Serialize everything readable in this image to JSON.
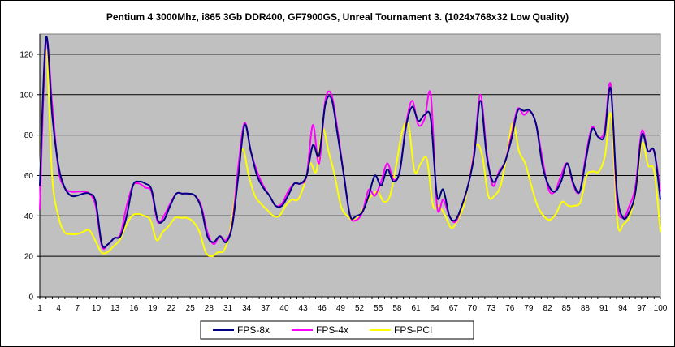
{
  "chart_data": {
    "type": "line",
    "title": "Pentium 4 3000Mhz, i865 3Gb DDR400, GF7900GS, Unreal Tournament 3. (1024x768x32 Low Quality)",
    "xlabel": "",
    "ylabel": "",
    "ylim": [
      0,
      130
    ],
    "yticks": [
      0,
      20,
      40,
      60,
      80,
      100,
      120
    ],
    "xlim": [
      1,
      100
    ],
    "xtick_labels": [
      1,
      4,
      7,
      10,
      13,
      16,
      19,
      22,
      25,
      28,
      31,
      34,
      37,
      40,
      43,
      46,
      49,
      52,
      55,
      58,
      61,
      64,
      67,
      70,
      73,
      76,
      79,
      82,
      85,
      88,
      91,
      94,
      97,
      100
    ],
    "grid": "horizontal",
    "legend_position": "bottom",
    "background": "#c0c0c0",
    "series": [
      {
        "name": "FPS-8x",
        "color": "#000080",
        "values": [
          55,
          128,
          90,
          65,
          54,
          50,
          50,
          51,
          51,
          47,
          26,
          26,
          29,
          30,
          40,
          55,
          57,
          56,
          53,
          38,
          38,
          45,
          51,
          51,
          51,
          50,
          44,
          30,
          27,
          30,
          27,
          35,
          60,
          85,
          72,
          60,
          54,
          50,
          45,
          45,
          50,
          56,
          56,
          60,
          75,
          70,
          95,
          98,
          80,
          60,
          40,
          40,
          42,
          50,
          60,
          55,
          63,
          57,
          62,
          84,
          94,
          87,
          90,
          88,
          50,
          53,
          40,
          38,
          45,
          55,
          70,
          97,
          70,
          57,
          61,
          67,
          78,
          92,
          92,
          92,
          85,
          65,
          55,
          52,
          57,
          66,
          56,
          52,
          68,
          83,
          79,
          80,
          103,
          52,
          39,
          42,
          52,
          80,
          72,
          72,
          48
        ]
      },
      {
        "name": "FPS-4x",
        "color": "#ff00ff",
        "values": [
          43,
          126,
          95,
          63,
          54,
          52,
          52,
          52,
          51,
          45,
          25,
          26,
          29,
          31,
          45,
          55,
          56,
          54,
          52,
          37,
          40,
          46,
          51,
          51,
          51,
          50,
          45,
          32,
          26,
          30,
          28,
          36,
          65,
          86,
          72,
          62,
          55,
          50,
          45,
          46,
          52,
          56,
          56,
          60,
          85,
          66,
          97,
          100,
          82,
          60,
          40,
          38,
          42,
          53,
          50,
          57,
          66,
          58,
          62,
          85,
          97,
          85,
          88,
          100,
          45,
          48,
          40,
          37,
          45,
          55,
          72,
          100,
          72,
          55,
          62,
          67,
          80,
          93,
          90,
          92,
          85,
          68,
          53,
          52,
          60,
          66,
          55,
          52,
          70,
          84,
          79,
          82,
          105,
          48,
          39,
          45,
          55,
          82,
          72,
          72,
          52
        ]
      },
      {
        "name": "FPS-PCI",
        "color": "#ffff00",
        "values": [
          60,
          122,
          60,
          40,
          32,
          31,
          31,
          32,
          33,
          28,
          22,
          22,
          25,
          28,
          35,
          40,
          41,
          40,
          38,
          28,
          32,
          35,
          39,
          39,
          39,
          37,
          32,
          22,
          20,
          22,
          23,
          33,
          55,
          73,
          60,
          50,
          46,
          43,
          40,
          40,
          45,
          48,
          48,
          55,
          66,
          62,
          83,
          72,
          60,
          45,
          40,
          38,
          40,
          46,
          50,
          52,
          47,
          50,
          65,
          82,
          85,
          62,
          66,
          68,
          45,
          45,
          40,
          34,
          38,
          45,
          60,
          75,
          70,
          50,
          50,
          55,
          70,
          86,
          72,
          66,
          55,
          45,
          40,
          38,
          41,
          47,
          45,
          45,
          47,
          60,
          62,
          62,
          70,
          90,
          37,
          36,
          40,
          52,
          76,
          65,
          62,
          32
        ]
      }
    ]
  }
}
